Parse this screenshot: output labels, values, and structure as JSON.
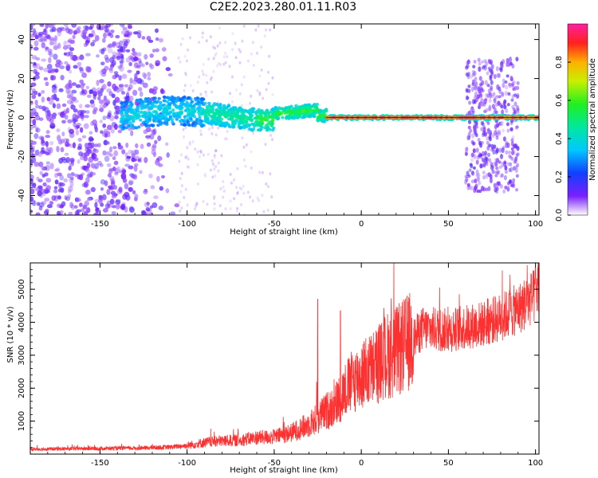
{
  "title": "C2E2.2023.280.01.11.R03",
  "chart_data": [
    {
      "type": "heatmap",
      "xlabel": "Height of straight line (km)",
      "ylabel": "Frequency (Hz)",
      "xlim": [
        -190,
        102
      ],
      "ylim": [
        -50,
        48
      ],
      "xticks": [
        -150,
        -100,
        -50,
        0,
        50,
        100
      ],
      "yticks": [
        -40,
        -20,
        0,
        20,
        40
      ],
      "colorbar": {
        "label": "Normalized spectral amplitude",
        "range": [
          0,
          1
        ],
        "ticks": [
          0.0,
          0.2,
          0.4,
          0.6,
          0.8
        ]
      },
      "regions": [
        {
          "x": [
            -190,
            -105
          ],
          "description": "broadband noise",
          "intensity": 0.15
        },
        {
          "x": [
            -135,
            -20
          ],
          "description": "signal band near 0 Hz, wavering",
          "intensity": 0.35
        },
        {
          "x": [
            -20,
            60
          ],
          "description": "narrow strong line at 0 Hz",
          "intensity": 0.9
        },
        {
          "x": [
            60,
            90
          ],
          "description": "noise burst",
          "intensity": 0.2
        },
        {
          "x": [
            60,
            102
          ],
          "description": "narrow strong line at 0 Hz",
          "intensity": 0.9
        }
      ],
      "grid": false
    },
    {
      "type": "line",
      "xlabel": "Height of straight line (km)",
      "ylabel": "SNR (10 * v/v)",
      "xlim": [
        -190,
        102
      ],
      "ylim": [
        0,
        5800
      ],
      "xticks": [
        -150,
        -100,
        -50,
        0,
        50,
        100
      ],
      "yticks": [
        1000,
        2000,
        3000,
        4000,
        5000
      ],
      "series": [
        {
          "color": "#ff3030",
          "x": [
            -190,
            -170,
            -150,
            -130,
            -110,
            -100,
            -90,
            -80,
            -70,
            -60,
            -50,
            -40,
            -30,
            -25,
            -20,
            -15,
            -10,
            -5,
            0,
            5,
            10,
            15,
            20,
            25,
            30,
            35,
            40,
            50,
            60,
            70,
            80,
            90,
            100,
            102
          ],
          "values": [
            150,
            160,
            170,
            180,
            210,
            260,
            350,
            400,
            420,
            500,
            520,
            650,
            900,
            1100,
            1300,
            1500,
            1900,
            2200,
            2400,
            2550,
            2750,
            3000,
            3100,
            3300,
            3500,
            3800,
            3800,
            3750,
            3850,
            3950,
            4150,
            4400,
            4800,
            5200
          ],
          "spikes": [
            [
              -25,
              4700
            ],
            [
              -12,
              4350
            ],
            [
              100,
              5650
            ]
          ]
        }
      ],
      "grid": false
    }
  ]
}
